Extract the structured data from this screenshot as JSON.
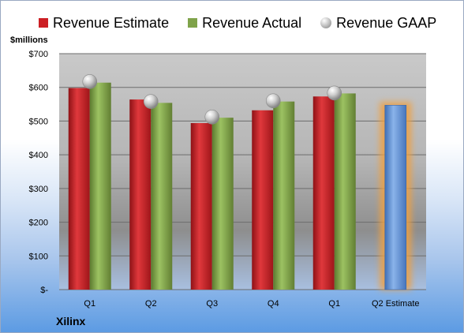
{
  "chart_data": {
    "type": "bar",
    "title": "",
    "ylabel": "$millions",
    "xlabel": "",
    "ylim": [
      0,
      700
    ],
    "yticks": [
      0,
      100,
      200,
      300,
      400,
      500,
      600,
      700
    ],
    "ytick_labels": [
      "$-",
      "$100",
      "$200",
      "$300",
      "$400",
      "$500",
      "$600",
      "$700"
    ],
    "categories": [
      "Q1",
      "Q2",
      "Q3",
      "Q4",
      "Q1",
      "Q2 Estimate"
    ],
    "series": [
      {
        "name": "Revenue Estimate",
        "type": "bar",
        "color": "#cc1f24",
        "values": [
          598,
          564,
          494,
          532,
          573,
          null
        ]
      },
      {
        "name": "Revenue Actual",
        "type": "bar",
        "color": "#7fa34a",
        "values": [
          614,
          554,
          510,
          558,
          582,
          null
        ]
      },
      {
        "name": "Revenue GAAP",
        "type": "marker",
        "color": "#b0b0b0",
        "values": [
          617,
          558,
          512,
          560,
          583,
          null
        ]
      },
      {
        "name": "",
        "type": "bar",
        "color": "#5b8fd6",
        "highlight": true,
        "values": [
          null,
          null,
          null,
          null,
          null,
          547
        ]
      }
    ],
    "grid": true,
    "legend": "top"
  },
  "footer": {
    "company": "Xilinx"
  }
}
